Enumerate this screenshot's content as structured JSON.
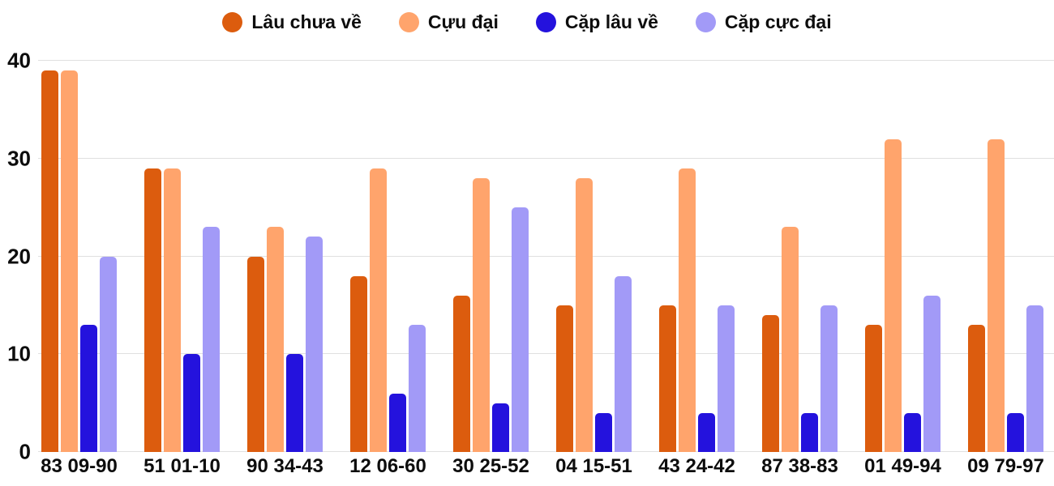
{
  "chart_data": {
    "type": "bar",
    "title": "",
    "xlabel": "",
    "ylabel": "",
    "categories": [
      "83 09-90",
      "51 01-10",
      "90 34-43",
      "12 06-60",
      "30 25-52",
      "04 15-51",
      "43 24-42",
      "87 38-83",
      "01 49-94",
      "09 79-97"
    ],
    "series": [
      {
        "name": "Lâu chưa về",
        "color": "#dc5c0e",
        "values": [
          39,
          29,
          20,
          18,
          16,
          15,
          15,
          14,
          13,
          13
        ]
      },
      {
        "name": "Cựu đại",
        "color": "#ffa46c",
        "values": [
          39,
          29,
          23,
          29,
          28,
          28,
          29,
          23,
          32,
          32
        ]
      },
      {
        "name": "Cặp lâu về",
        "color": "#2412dd",
        "values": [
          13,
          10,
          10,
          6,
          5,
          4,
          4,
          4,
          4,
          4
        ]
      },
      {
        "name": "Cặp cực đại",
        "color": "#a29af7",
        "values": [
          20,
          23,
          22,
          13,
          25,
          18,
          15,
          15,
          16,
          15
        ]
      }
    ],
    "ylim": [
      0,
      40
    ],
    "yticks": [
      0,
      10,
      20,
      30,
      40
    ],
    "grid": true,
    "legend_position": "top",
    "background_color": "#ffffff",
    "gridline_color": "#e0e0e0",
    "text_color": "#0d0d0d"
  }
}
